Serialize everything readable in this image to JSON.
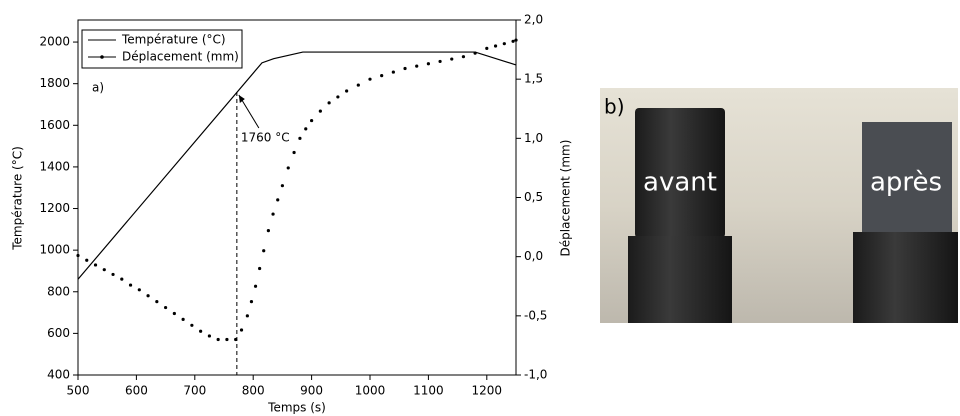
{
  "chart_data": {
    "type": "line",
    "xlabel": "Temps (s)",
    "ylabel": "Température (°C)",
    "y2label": "Déplacement (mm)",
    "panel_label": "a)",
    "xlim": [
      500,
      1250
    ],
    "xticks": [
      500,
      600,
      700,
      800,
      900,
      1000,
      1100,
      1200
    ],
    "ylim": [
      400,
      2106
    ],
    "yticks": [
      400,
      600,
      800,
      1000,
      1200,
      1400,
      1600,
      1800,
      2000
    ],
    "y2lim": [
      -1,
      2
    ],
    "y2ticks": [
      {
        "value": -1,
        "label": "-1,0"
      },
      {
        "value": -0.5,
        "label": "-0,5"
      },
      {
        "value": 0,
        "label": "0,0"
      },
      {
        "value": 0.5,
        "label": "0,5"
      },
      {
        "value": 1,
        "label": "1,0"
      },
      {
        "value": 1.5,
        "label": "1,5"
      },
      {
        "value": 2,
        "label": "2,0"
      }
    ],
    "annotation": {
      "text": "1760 °C",
      "x": 772,
      "y": 1760
    },
    "series": [
      {
        "name": "Température (°C)",
        "color": "#000000",
        "marker": "none",
        "x": [
          500,
          815,
          835,
          885,
          1180,
          1250
        ],
        "values": [
          860,
          1900,
          1920,
          1952,
          1952,
          1890
        ]
      },
      {
        "name": "Déplacement (mm)",
        "color": "#000000",
        "marker": "dot",
        "axis": "y2",
        "x": [
          500,
          515,
          530,
          545,
          560,
          575,
          590,
          605,
          620,
          635,
          650,
          665,
          680,
          695,
          710,
          725,
          740,
          755,
          770,
          780,
          790,
          797,
          804,
          811,
          818,
          826,
          834,
          842,
          850,
          860,
          870,
          880,
          890,
          900,
          915,
          930,
          945,
          960,
          980,
          1000,
          1020,
          1040,
          1060,
          1080,
          1100,
          1120,
          1140,
          1160,
          1180,
          1200,
          1215,
          1230,
          1245,
          1250
        ],
        "values": [
          0.01,
          -0.03,
          -0.07,
          -0.11,
          -0.15,
          -0.19,
          -0.24,
          -0.28,
          -0.33,
          -0.38,
          -0.43,
          -0.48,
          -0.53,
          -0.58,
          -0.63,
          -0.67,
          -0.7,
          -0.7,
          -0.7,
          -0.62,
          -0.5,
          -0.38,
          -0.25,
          -0.1,
          0.05,
          0.22,
          0.36,
          0.48,
          0.6,
          0.75,
          0.88,
          1.0,
          1.08,
          1.15,
          1.23,
          1.3,
          1.35,
          1.4,
          1.45,
          1.5,
          1.53,
          1.56,
          1.59,
          1.61,
          1.63,
          1.65,
          1.67,
          1.69,
          1.72,
          1.76,
          1.78,
          1.8,
          1.82,
          1.83
        ]
      }
    ]
  },
  "photo": {
    "label": "b)",
    "texts": [
      "avant",
      "après"
    ]
  }
}
